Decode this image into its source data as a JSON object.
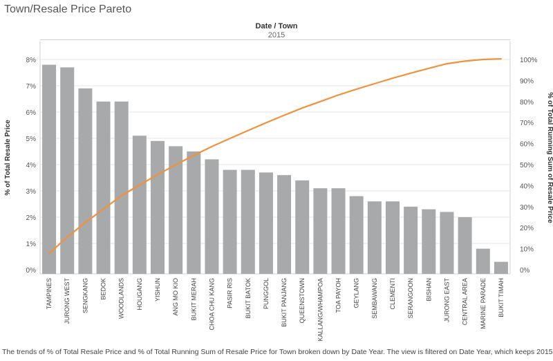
{
  "page": {
    "title": "Town/Resale Price Pareto",
    "header_field": "Date / Town",
    "header_value": "2015",
    "caption": "The trends of % of Total Resale Price and % of Total Running Sum of Resale Price for Town broken down by Date Year. The view is filtered on Date Year, which keeps 2015."
  },
  "colors": {
    "bar": "#a7a9ab",
    "line": "#f0923b",
    "grid": "#e6e6e6"
  },
  "chart_data": {
    "type": "bar",
    "categories": [
      "TAMPINES",
      "JURONG WEST",
      "SENGKANG",
      "BEDOK",
      "WOODLANDS",
      "HOUGANG",
      "YISHUN",
      "ANG MO KIO",
      "BUKIT MERAH",
      "CHOA CHU KANG",
      "PASIR RIS",
      "BUKIT BATOK",
      "PUNGGOL",
      "BUKIT PANJANG",
      "QUEENSTOWN",
      "KALLANG/WHAMPOA",
      "TOA PAYOH",
      "GEYLANG",
      "SEMBAWANG",
      "CLEMENTI",
      "SERANGOON",
      "BISHAN",
      "JURONG EAST",
      "CENTRAL AREA",
      "MARINE PARADE",
      "BUKIT TIMAH"
    ],
    "series": [
      {
        "axis": "left",
        "type": "bar",
        "values": [
          7.8,
          7.7,
          6.9,
          6.4,
          6.4,
          5.1,
          4.9,
          4.7,
          4.5,
          4.2,
          3.8,
          3.8,
          3.7,
          3.6,
          3.4,
          3.1,
          3.1,
          2.8,
          2.6,
          2.6,
          2.4,
          2.3,
          2.2,
          2.0,
          0.8,
          0.3
        ]
      },
      {
        "axis": "right",
        "type": "line",
        "values": [
          7.8,
          15.5,
          22.4,
          28.8,
          35.2,
          40.3,
          45.2,
          49.9,
          54.4,
          58.6,
          62.4,
          66.2,
          69.9,
          73.5,
          76.9,
          80.0,
          83.1,
          85.9,
          88.5,
          91.1,
          93.5,
          95.8,
          98.0,
          99.2,
          100.0,
          100.3
        ]
      }
    ],
    "ylabel": "% of Total Resale Price",
    "ylabel_right": "% of Total Running Sum of Resale Price",
    "ylim": [
      0,
      8
    ],
    "ylim_right": [
      0,
      100
    ],
    "yticks": [
      "0%",
      "1%",
      "2%",
      "3%",
      "4%",
      "5%",
      "6%",
      "7%",
      "8%"
    ],
    "yticks_right": [
      "0%",
      "10%",
      "20%",
      "30%",
      "40%",
      "50%",
      "60%",
      "70%",
      "80%",
      "90%",
      "100%"
    ],
    "grid": true
  }
}
